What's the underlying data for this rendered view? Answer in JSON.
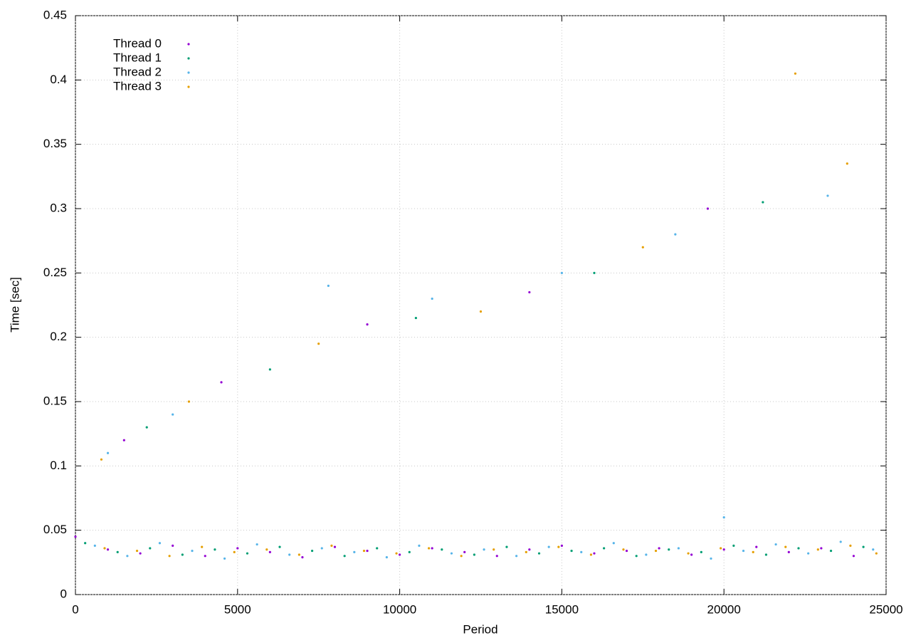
{
  "chart_data": {
    "type": "scatter",
    "x_label": "Period",
    "y_label": "Time [sec]",
    "xlim": [
      0,
      25000
    ],
    "xticks": [
      0,
      5000,
      10000,
      15000,
      20000,
      25000
    ],
    "ylim": [
      0,
      0.45
    ],
    "yticks": [
      0,
      0.05,
      0.1,
      0.15,
      0.2,
      0.25,
      0.3,
      0.35,
      0.4,
      0.45
    ],
    "grid": true,
    "legend": "upper-left",
    "series": [
      {
        "name": "Thread 0",
        "color": "#9400d3",
        "x": [
          0,
          1000,
          2000,
          3000,
          4000,
          5000,
          6000,
          7000,
          8000,
          9000,
          10000,
          11000,
          12000,
          13000,
          14000,
          15000,
          16000,
          17000,
          18000,
          19000,
          20000,
          21000,
          22000,
          23000,
          24000,
          1500,
          4500,
          9000,
          14000,
          19500
        ],
        "y": [
          0.045,
          0.035,
          0.032,
          0.038,
          0.03,
          0.036,
          0.033,
          0.029,
          0.037,
          0.034,
          0.031,
          0.036,
          0.033,
          0.03,
          0.035,
          0.038,
          0.032,
          0.034,
          0.036,
          0.031,
          0.035,
          0.037,
          0.033,
          0.036,
          0.03,
          0.12,
          0.165,
          0.21,
          0.235,
          0.3
        ]
      },
      {
        "name": "Thread 1",
        "color": "#009e73",
        "x": [
          300,
          1300,
          2300,
          3300,
          4300,
          5300,
          6300,
          7300,
          8300,
          9300,
          10300,
          11300,
          12300,
          13300,
          14300,
          15300,
          16300,
          17300,
          18300,
          19300,
          20300,
          21300,
          22300,
          23300,
          24300,
          2200,
          6000,
          10500,
          16000,
          21200
        ],
        "y": [
          0.04,
          0.033,
          0.036,
          0.031,
          0.035,
          0.032,
          0.037,
          0.034,
          0.03,
          0.036,
          0.033,
          0.035,
          0.031,
          0.037,
          0.032,
          0.034,
          0.036,
          0.03,
          0.035,
          0.033,
          0.038,
          0.031,
          0.036,
          0.034,
          0.037,
          0.13,
          0.175,
          0.215,
          0.25,
          0.305
        ]
      },
      {
        "name": "Thread 2",
        "color": "#56b4e9",
        "x": [
          600,
          1600,
          2600,
          3600,
          4600,
          5600,
          6600,
          7600,
          8600,
          9600,
          10600,
          11600,
          12600,
          13600,
          14600,
          15600,
          16600,
          17600,
          18600,
          19600,
          20600,
          21600,
          22600,
          23600,
          24600,
          1000,
          3000,
          7800,
          11000,
          15000,
          18500,
          20000,
          23200
        ],
        "y": [
          0.038,
          0.03,
          0.04,
          0.034,
          0.028,
          0.039,
          0.031,
          0.036,
          0.033,
          0.029,
          0.038,
          0.032,
          0.035,
          0.03,
          0.037,
          0.033,
          0.04,
          0.031,
          0.036,
          0.028,
          0.034,
          0.039,
          0.032,
          0.041,
          0.035,
          0.11,
          0.14,
          0.24,
          0.23,
          0.25,
          0.28,
          0.06,
          0.31
        ]
      },
      {
        "name": "Thread 3",
        "color": "#e69f00",
        "x": [
          900,
          1900,
          2900,
          3900,
          4900,
          5900,
          6900,
          7900,
          8900,
          9900,
          10900,
          11900,
          12900,
          13900,
          14900,
          15900,
          16900,
          17900,
          18900,
          19900,
          20900,
          21900,
          22900,
          23900,
          24700,
          800,
          3500,
          7500,
          12500,
          17500,
          22200,
          23800
        ],
        "y": [
          0.036,
          0.034,
          0.03,
          0.037,
          0.033,
          0.035,
          0.031,
          0.038,
          0.034,
          0.032,
          0.036,
          0.03,
          0.035,
          0.033,
          0.037,
          0.031,
          0.035,
          0.034,
          0.032,
          0.036,
          0.033,
          0.037,
          0.035,
          0.038,
          0.032,
          0.105,
          0.15,
          0.195,
          0.22,
          0.27,
          0.405,
          0.335
        ]
      }
    ]
  }
}
